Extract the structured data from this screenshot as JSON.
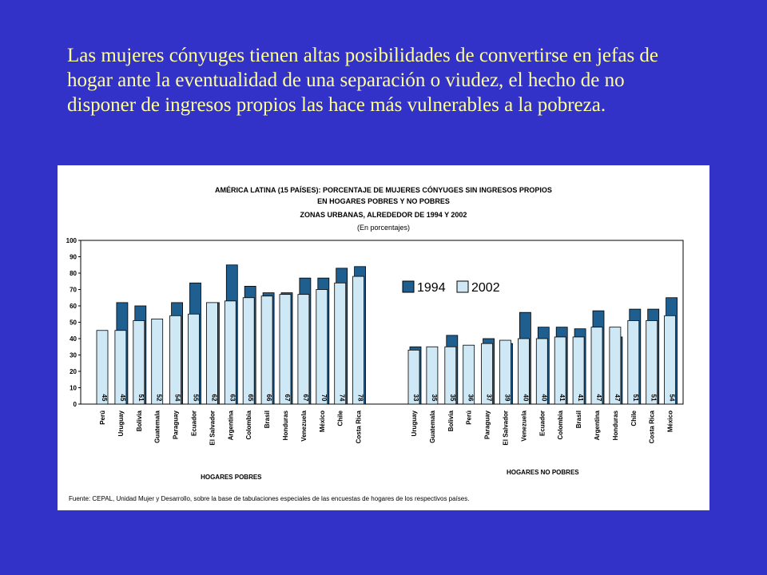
{
  "slide": {
    "text": "Las mujeres cónyuges tienen altas posibilidades de convertirse en jefas de hogar ante la eventualidad de una separación o viudez, el hecho de no disponer de ingresos propios las hace más vulnerables a la pobreza."
  },
  "chart_data": {
    "type": "bar",
    "title": "AMÉRICA LATINA (15 PAÍSES): PORCENTAJE DE MUJERES CÓNYUGES  SIN INGRESOS PROPIOS",
    "title_line2": "EN  HOGARES POBRES Y NO POBRES",
    "subtitle": "ZONAS URBANAS,  ALREDEDOR DE 1994 Y 2002",
    "unit_note": "(En porcentajes)",
    "source": "Fuente: CEPAL, Unidad Mujer y Desarrollo, sobre la base de tabulaciones especiales de las encuestas de hogares de los respectivos países.",
    "ylim": [
      0,
      100
    ],
    "yticks": [
      0,
      10,
      20,
      30,
      40,
      50,
      60,
      70,
      80,
      90,
      100
    ],
    "legend": {
      "position": "center-right",
      "entries": [
        "1994",
        "2002"
      ]
    },
    "colors": {
      "1994": "#1f5f8f",
      "2002": "#cfe8f5",
      "outline": "#000000"
    },
    "groups": [
      {
        "label": "HOGARES POBRES",
        "categories": [
          "Perú",
          "Uruguay",
          "Bolivia",
          "Guatemala",
          "Paraguay",
          "Ecuador",
          "El Salvador",
          "Argentina",
          "Colombia",
          "Brasil",
          "Honduras",
          "Venezuela",
          "México",
          "Chile",
          "Costa Rica"
        ],
        "series": [
          {
            "name": "1994",
            "values": [
              null,
              62,
              60,
              null,
              62,
              74,
              62,
              85,
              72,
              68,
              68,
              77,
              77,
              83,
              84
            ]
          },
          {
            "name": "2002",
            "values": [
              45,
              45,
              51,
              52,
              54,
              55,
              62,
              63,
              65,
              66,
              67,
              67,
              70,
              74,
              78
            ]
          }
        ]
      },
      {
        "label": "HOGARES NO POBRES",
        "categories": [
          "Uruguay",
          "Guatemala",
          "Bolivia",
          "Perú",
          "Paraguay",
          "El Salvador",
          "Venezuela",
          "Ecuador",
          "Colombia",
          "Brasil",
          "Argentina",
          "Honduras",
          "Chile",
          "Costa Rica",
          "México"
        ],
        "series": [
          {
            "name": "1994",
            "values": [
              35,
              null,
              42,
              null,
              40,
              37,
              56,
              47,
              47,
              46,
              57,
              41,
              58,
              58,
              65
            ]
          },
          {
            "name": "2002",
            "values": [
              33,
              35,
              35,
              36,
              37,
              39,
              40,
              40,
              41,
              41,
              47,
              47,
              51,
              51,
              54
            ]
          }
        ]
      }
    ]
  }
}
